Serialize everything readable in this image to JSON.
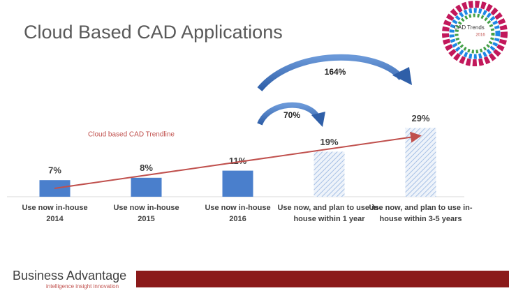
{
  "chart_data": {
    "type": "bar",
    "title": "Cloud Based CAD Applications",
    "categories": [
      "Use now in-house\n2014",
      "Use now in-house\n2015",
      "Use now in-house\n2016",
      "Use now, and plan to use in-\nhouse within 1 year",
      "Use now, and plan to use in-\nhouse within 3-5 years"
    ],
    "values": [
      7,
      8,
      11,
      19,
      29
    ],
    "value_labels": [
      "7%",
      "8%",
      "11%",
      "19%",
      "29%"
    ],
    "hatched": [
      false,
      false,
      false,
      true,
      true
    ],
    "color": "#4a7fcc",
    "trendline_label": "Cloud based CAD Trendline",
    "annotations": [
      "70%",
      "164%"
    ]
  },
  "logo": {
    "title": "CAD Trends",
    "year": "2016"
  },
  "footer": {
    "brand": "Business Advantage",
    "tagline": "intelligence insight innovation"
  }
}
